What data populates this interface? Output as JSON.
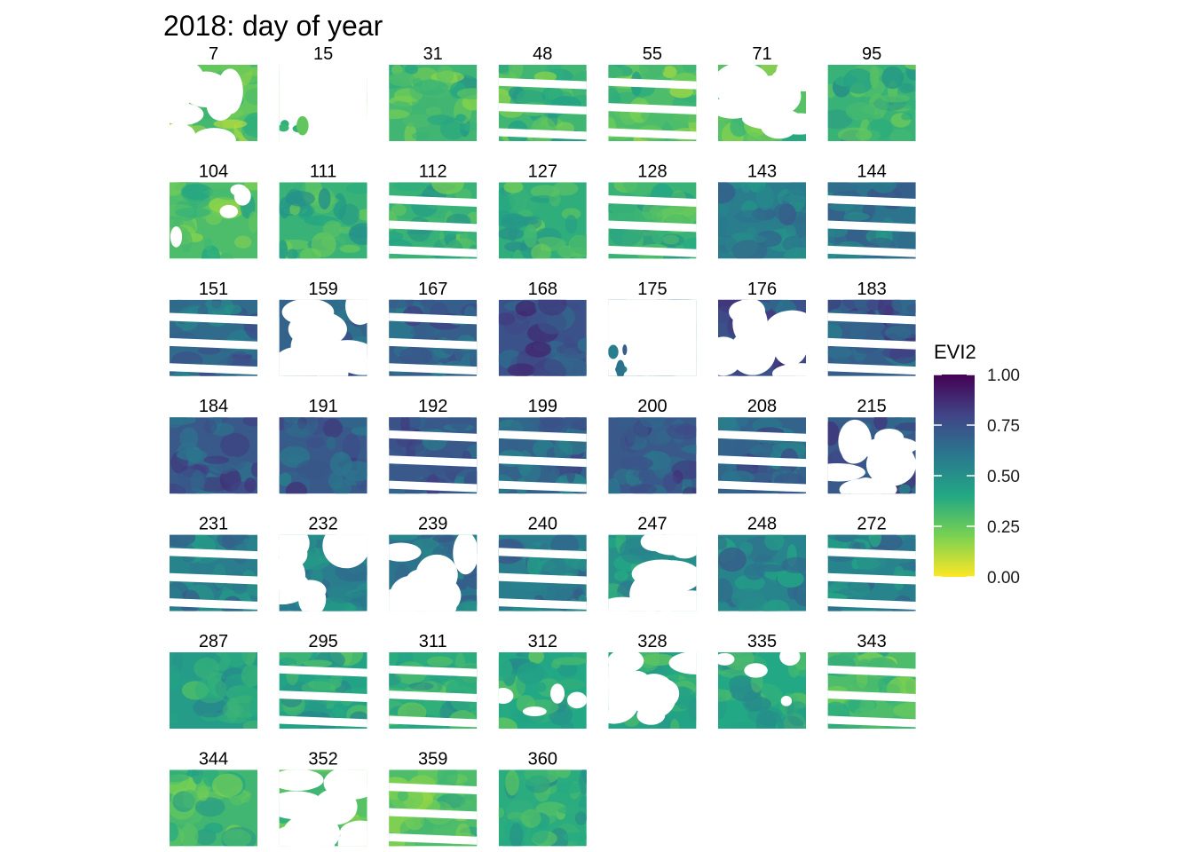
{
  "chart_data": {
    "type": "heatmap",
    "title": "2018: day of year",
    "facet_labels": [
      "7",
      "15",
      "31",
      "48",
      "55",
      "71",
      "95",
      "104",
      "111",
      "112",
      "127",
      "128",
      "143",
      "144",
      "151",
      "159",
      "167",
      "168",
      "175",
      "176",
      "183",
      "184",
      "191",
      "192",
      "199",
      "200",
      "208",
      "215",
      "231",
      "232",
      "239",
      "240",
      "247",
      "248",
      "272",
      "287",
      "295",
      "311",
      "312",
      "328",
      "335",
      "343",
      "344",
      "352",
      "359",
      "360"
    ],
    "facet_columns": 7,
    "legend": {
      "title": "EVI2",
      "placement": "right",
      "range": [
        0,
        1
      ],
      "ticks": [
        1.0,
        0.75,
        0.5,
        0.25,
        0.0
      ],
      "tick_labels": [
        "1.00",
        "0.75",
        "0.50",
        "0.25",
        "0.00"
      ],
      "colormap": "viridis reversed (0 = yellow, 1 = dark purple)",
      "colors": [
        "#fde725",
        "#7ad151",
        "#22a884",
        "#2a788e",
        "#414487",
        "#440154"
      ]
    },
    "panels": [
      {
        "doy": 7,
        "mean_evi2": 0.25,
        "coverage": "heavy-cloud"
      },
      {
        "doy": 15,
        "mean_evi2": 0.3,
        "coverage": "nearly-empty"
      },
      {
        "doy": 31,
        "mean_evi2": 0.33,
        "coverage": "full"
      },
      {
        "doy": 48,
        "mean_evi2": 0.33,
        "coverage": "stripes"
      },
      {
        "doy": 55,
        "mean_evi2": 0.3,
        "coverage": "stripes"
      },
      {
        "doy": 71,
        "mean_evi2": 0.28,
        "coverage": "heavy-cloud"
      },
      {
        "doy": 95,
        "mean_evi2": 0.35,
        "coverage": "full"
      },
      {
        "doy": 104,
        "mean_evi2": 0.3,
        "coverage": "partial-cloud"
      },
      {
        "doy": 111,
        "mean_evi2": 0.35,
        "coverage": "full"
      },
      {
        "doy": 112,
        "mean_evi2": 0.35,
        "coverage": "stripes"
      },
      {
        "doy": 127,
        "mean_evi2": 0.37,
        "coverage": "full"
      },
      {
        "doy": 128,
        "mean_evi2": 0.35,
        "coverage": "stripes"
      },
      {
        "doy": 143,
        "mean_evi2": 0.58,
        "coverage": "full"
      },
      {
        "doy": 144,
        "mean_evi2": 0.62,
        "coverage": "stripes"
      },
      {
        "doy": 151,
        "mean_evi2": 0.65,
        "coverage": "stripes"
      },
      {
        "doy": 159,
        "mean_evi2": 0.68,
        "coverage": "heavy-cloud"
      },
      {
        "doy": 167,
        "mean_evi2": 0.7,
        "coverage": "stripes"
      },
      {
        "doy": 168,
        "mean_evi2": 0.75,
        "coverage": "full"
      },
      {
        "doy": 175,
        "mean_evi2": 0.62,
        "coverage": "nearly-empty"
      },
      {
        "doy": 176,
        "mean_evi2": 0.75,
        "coverage": "heavy-cloud"
      },
      {
        "doy": 183,
        "mean_evi2": 0.7,
        "coverage": "stripes"
      },
      {
        "doy": 184,
        "mean_evi2": 0.72,
        "coverage": "full"
      },
      {
        "doy": 191,
        "mean_evi2": 0.72,
        "coverage": "full"
      },
      {
        "doy": 192,
        "mean_evi2": 0.72,
        "coverage": "stripes"
      },
      {
        "doy": 199,
        "mean_evi2": 0.68,
        "coverage": "stripes"
      },
      {
        "doy": 200,
        "mean_evi2": 0.72,
        "coverage": "full"
      },
      {
        "doy": 208,
        "mean_evi2": 0.68,
        "coverage": "stripes"
      },
      {
        "doy": 215,
        "mean_evi2": 0.72,
        "coverage": "heavy-cloud"
      },
      {
        "doy": 231,
        "mean_evi2": 0.58,
        "coverage": "stripes"
      },
      {
        "doy": 232,
        "mean_evi2": 0.58,
        "coverage": "heavy-cloud"
      },
      {
        "doy": 239,
        "mean_evi2": 0.62,
        "coverage": "heavy-cloud"
      },
      {
        "doy": 240,
        "mean_evi2": 0.58,
        "coverage": "stripes"
      },
      {
        "doy": 247,
        "mean_evi2": 0.5,
        "coverage": "heavy-cloud"
      },
      {
        "doy": 248,
        "mean_evi2": 0.55,
        "coverage": "full"
      },
      {
        "doy": 272,
        "mean_evi2": 0.55,
        "coverage": "stripes"
      },
      {
        "doy": 287,
        "mean_evi2": 0.45,
        "coverage": "full"
      },
      {
        "doy": 295,
        "mean_evi2": 0.42,
        "coverage": "stripes"
      },
      {
        "doy": 311,
        "mean_evi2": 0.38,
        "coverage": "stripes"
      },
      {
        "doy": 312,
        "mean_evi2": 0.4,
        "coverage": "partial-cloud"
      },
      {
        "doy": 328,
        "mean_evi2": 0.42,
        "coverage": "heavy-cloud"
      },
      {
        "doy": 335,
        "mean_evi2": 0.4,
        "coverage": "partial-cloud"
      },
      {
        "doy": 343,
        "mean_evi2": 0.3,
        "coverage": "stripes"
      },
      {
        "doy": 344,
        "mean_evi2": 0.33,
        "coverage": "full"
      },
      {
        "doy": 352,
        "mean_evi2": 0.28,
        "coverage": "heavy-cloud"
      },
      {
        "doy": 359,
        "mean_evi2": 0.3,
        "coverage": "stripes"
      },
      {
        "doy": 360,
        "mean_evi2": 0.38,
        "coverage": "full"
      }
    ]
  }
}
